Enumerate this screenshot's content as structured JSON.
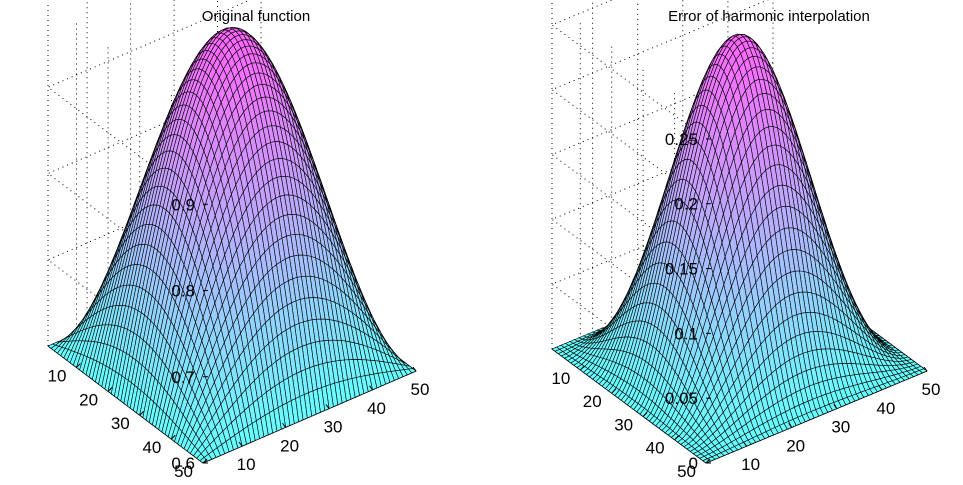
{
  "chart_data": [
    {
      "type": "surface",
      "title": "Original function",
      "xlabel": "",
      "ylabel": "",
      "zlabel": "",
      "grid": true,
      "x_range": [
        1,
        50
      ],
      "y_range": [
        1,
        50
      ],
      "z_range": [
        0.6,
        1.0
      ],
      "grid_size": [
        50,
        50
      ],
      "x_ticks": [
        10,
        20,
        30,
        40,
        50
      ],
      "y_ticks": [
        10,
        20,
        30,
        40,
        50
      ],
      "z_ticks": [
        0.6,
        0.7,
        0.8,
        0.9
      ],
      "x_tick_labels": [
        "10",
        "20",
        "30",
        "40",
        "50"
      ],
      "y_tick_labels": [
        "10",
        "20",
        "30",
        "40",
        "50"
      ],
      "z_tick_labels": [
        "0.6",
        "0.7",
        "0.8",
        "0.9"
      ],
      "z_min": 0.6,
      "z_max": 0.98,
      "colormap": [
        "#66ffff",
        "#ff66ff"
      ]
    },
    {
      "type": "surface",
      "title": "Error of harmonic interpolation",
      "xlabel": "",
      "ylabel": "",
      "zlabel": "",
      "grid": true,
      "x_range": [
        1,
        50
      ],
      "y_range": [
        1,
        50
      ],
      "z_range": [
        0,
        0.27
      ],
      "grid_size": [
        50,
        50
      ],
      "x_ticks": [
        10,
        20,
        30,
        40,
        50
      ],
      "y_ticks": [
        10,
        20,
        30,
        40,
        50
      ],
      "z_ticks": [
        0,
        0.05,
        0.1,
        0.15,
        0.2,
        0.25
      ],
      "x_tick_labels": [
        "10",
        "20",
        "30",
        "40",
        "50"
      ],
      "y_tick_labels": [
        "10",
        "20",
        "30",
        "40",
        "50"
      ],
      "z_tick_labels": [
        "0",
        "0.05",
        "0.1",
        "0.15",
        "0.2",
        "0.25"
      ],
      "z_min": 0,
      "z_max": 0.25,
      "colormap": [
        "#66ffff",
        "#ff66ff"
      ]
    }
  ]
}
